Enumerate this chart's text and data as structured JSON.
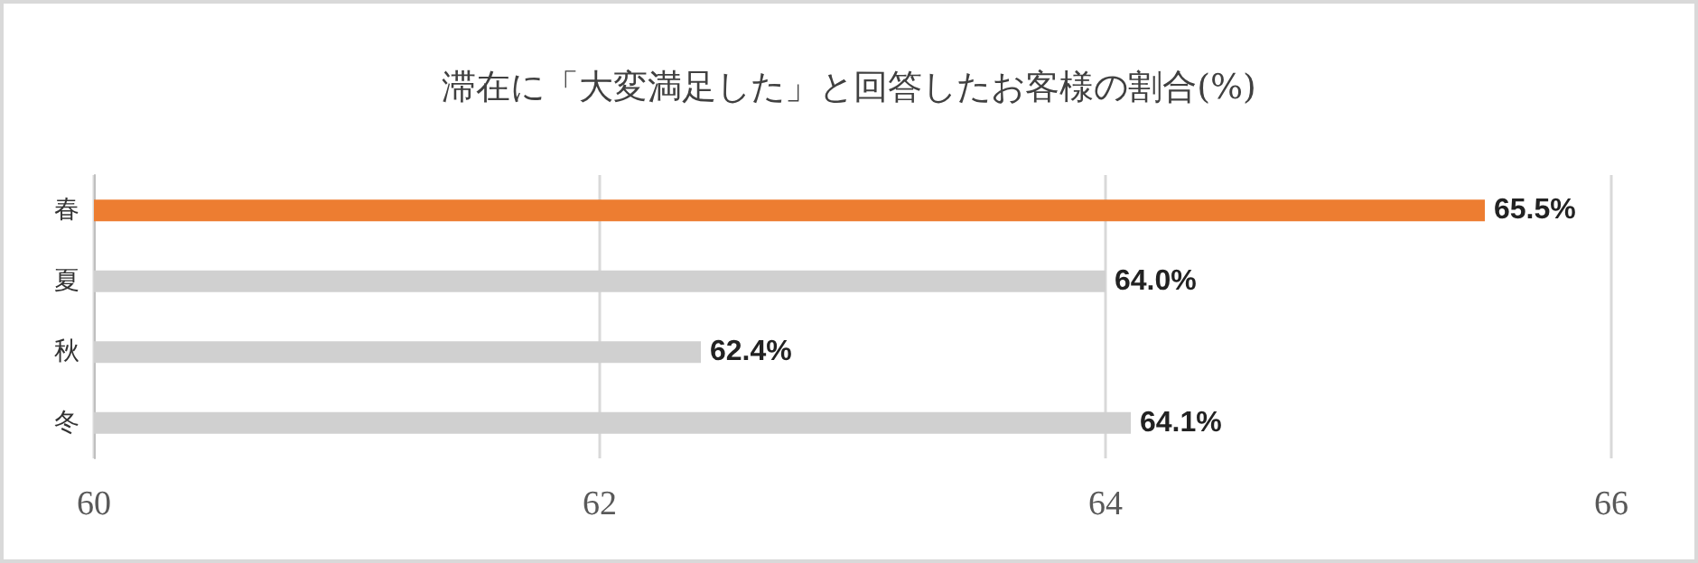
{
  "chart_data": {
    "type": "bar",
    "orientation": "horizontal",
    "title": "滞在に「大変満足した」と回答したお客様の割合(%)",
    "categories": [
      "春",
      "夏",
      "秋",
      "冬"
    ],
    "values": [
      65.5,
      64.0,
      62.4,
      64.1
    ],
    "colors": [
      "#ed7d31",
      "#d0d0d0",
      "#d0d0d0",
      "#d0d0d0"
    ],
    "value_labels": [
      "65.5%",
      "64.0%",
      "62.4%",
      "64.1%"
    ],
    "xlim": [
      60,
      66
    ],
    "xticks": [
      60,
      62,
      64,
      66
    ],
    "grid": "x"
  }
}
